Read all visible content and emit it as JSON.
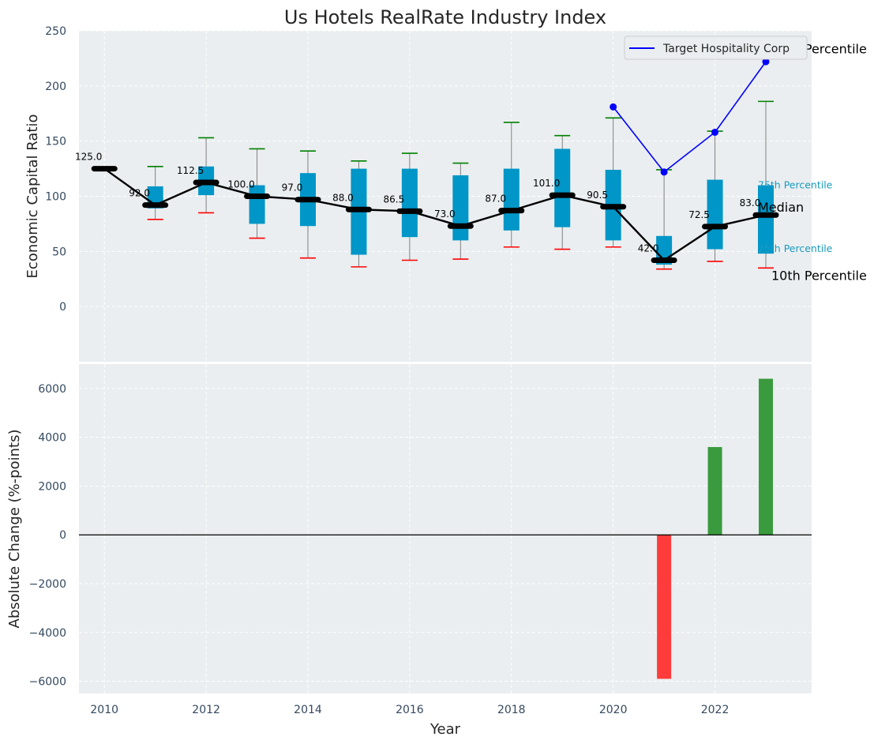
{
  "chart_data": [
    {
      "type": "box",
      "title": "Us Hotels RealRate Industry Index",
      "ylabel": "Economic Capital Ratio",
      "ylim": [
        -50,
        250
      ],
      "yticks": [
        0,
        50,
        100,
        150,
        200,
        250
      ],
      "xlim": [
        2009.5,
        2023.9
      ],
      "grid": true,
      "legend_position": "top-right",
      "colors": {
        "box": "#0096c7",
        "median": "#000000",
        "p90_cap": "#008000",
        "p10_cap": "#ff0000",
        "whisker": "#808080",
        "target": "#0000ff",
        "plot_bg": "#eaeef0"
      },
      "years": [
        2010,
        2011,
        2012,
        2013,
        2014,
        2015,
        2016,
        2017,
        2018,
        2019,
        2020,
        2021,
        2022,
        2023
      ],
      "median": [
        125.0,
        92.0,
        112.5,
        100.0,
        97.0,
        88.0,
        86.5,
        73.0,
        87.0,
        101.0,
        90.5,
        42.0,
        72.5,
        83.0
      ],
      "median_labels": [
        "125.0",
        "92.0",
        "112.5",
        "100.0",
        "97.0",
        "88.0",
        "86.5",
        "73.0",
        "87.0",
        "101.0",
        "90.5",
        "42.0",
        "72.5",
        "83.0"
      ],
      "p25": [
        125,
        89,
        101,
        75,
        73,
        47,
        63,
        60,
        69,
        72,
        60,
        38,
        52,
        48
      ],
      "p75": [
        125,
        109,
        127,
        110,
        121,
        125,
        125,
        119,
        125,
        143,
        124,
        64,
        115,
        110
      ],
      "p10": [
        125,
        79,
        85,
        62,
        44,
        36,
        42,
        43,
        54,
        52,
        54,
        34,
        41,
        35
      ],
      "p90": [
        125,
        127,
        153,
        143,
        141,
        132,
        139,
        130,
        167,
        155,
        171,
        124,
        159,
        186
      ],
      "series": [
        {
          "name": "Target Hospitality Corp",
          "x": [
            2020,
            2021,
            2022,
            2023
          ],
          "values": [
            181,
            122,
            158,
            222
          ]
        }
      ],
      "right_labels": {
        "p90": "90th Percentile",
        "p75": "75th Percentile",
        "median": "Median",
        "p25": "25th Percentile",
        "p10": "10th Percentile"
      }
    },
    {
      "type": "bar",
      "xlabel": "Year",
      "ylabel": "Absolute Change (%-points)",
      "ylim": [
        -6500,
        7000
      ],
      "yticks": [
        -6000,
        -4000,
        -2000,
        0,
        2000,
        4000,
        6000
      ],
      "ytick_labels": [
        "−6000",
        "−4000",
        "−2000",
        "0",
        "2000",
        "4000",
        "6000"
      ],
      "xticks": [
        2010,
        2012,
        2014,
        2016,
        2018,
        2020,
        2022
      ],
      "grid": true,
      "colors": {
        "positive": "#3a9a3e",
        "negative": "#ff3b3b"
      },
      "x": [
        2021,
        2022,
        2023
      ],
      "values": [
        -5900,
        3600,
        6400
      ]
    }
  ]
}
